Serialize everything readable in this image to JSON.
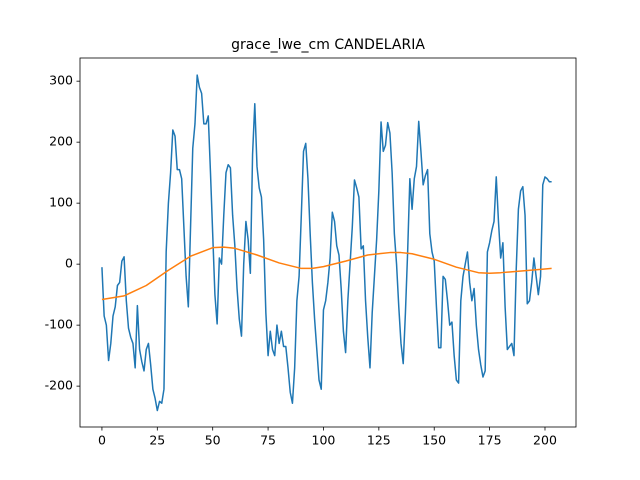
{
  "chart_data": {
    "type": "line",
    "title": "grace_lwe_cm CANDELARIA",
    "xlim": [
      -9.9,
      214
    ],
    "xticks": [
      0,
      25,
      50,
      75,
      100,
      125,
      150,
      175,
      200
    ],
    "ylim": [
      -267,
      338
    ],
    "yticks": [
      -200,
      -100,
      0,
      100,
      200,
      300
    ],
    "grid": false,
    "series": [
      {
        "color": "#1f77b4",
        "x": [
          0,
          1,
          2,
          3,
          4,
          5,
          6,
          7,
          8,
          9,
          10,
          11,
          12,
          13,
          14,
          15,
          16,
          17,
          18,
          19,
          20,
          21,
          22,
          23,
          24,
          25,
          26,
          27,
          28,
          29,
          30,
          31,
          32,
          33,
          34,
          35,
          36,
          37,
          38,
          39,
          40,
          41,
          42,
          43,
          44,
          45,
          46,
          47,
          48,
          49,
          50,
          51,
          52,
          53,
          54,
          55,
          56,
          57,
          58,
          59,
          60,
          61,
          62,
          63,
          64,
          65,
          66,
          67,
          68,
          69,
          70,
          71,
          72,
          73,
          74,
          75,
          76,
          77,
          78,
          79,
          80,
          81,
          82,
          83,
          84,
          85,
          86,
          87,
          88,
          89,
          90,
          91,
          92,
          93,
          94,
          95,
          96,
          97,
          98,
          99,
          100,
          101,
          102,
          103,
          104,
          105,
          106,
          107,
          108,
          109,
          110,
          111,
          112,
          113,
          114,
          115,
          116,
          117,
          118,
          119,
          120,
          121,
          122,
          123,
          124,
          125,
          126,
          127,
          128,
          129,
          130,
          131,
          132,
          133,
          134,
          135,
          136,
          137,
          138,
          139,
          140,
          141,
          142,
          143,
          144,
          145,
          146,
          147,
          148,
          149,
          150,
          151,
          152,
          153,
          154,
          155,
          156,
          157,
          158,
          159,
          160,
          161,
          162,
          163,
          164,
          165,
          166,
          167,
          168,
          169,
          170,
          171,
          172,
          173,
          174,
          175,
          176,
          177,
          178,
          179,
          180,
          181,
          182,
          183,
          184,
          185,
          186,
          187,
          188,
          189,
          190,
          191,
          192,
          193,
          194,
          195,
          196,
          197,
          198,
          199,
          200,
          201,
          202,
          203
        ],
        "values": [
          -5,
          -85,
          -100,
          -158,
          -130,
          -85,
          -70,
          -35,
          -30,
          5,
          12,
          -60,
          -105,
          -120,
          -130,
          -170,
          -68,
          -140,
          -160,
          -175,
          -140,
          -130,
          -165,
          -205,
          -220,
          -240,
          -225,
          -228,
          -205,
          20,
          100,
          150,
          220,
          210,
          155,
          155,
          140,
          60,
          -20,
          -70,
          60,
          190,
          230,
          310,
          290,
          280,
          230,
          230,
          243,
          150,
          50,
          -50,
          -98,
          10,
          0,
          80,
          150,
          163,
          158,
          80,
          30,
          -40,
          -90,
          -118,
          0,
          70,
          40,
          -15,
          180,
          263,
          160,
          125,
          110,
          40,
          -80,
          -150,
          -110,
          -140,
          -150,
          -100,
          -130,
          -110,
          -135,
          -135,
          -170,
          -210,
          -228,
          -170,
          -60,
          -20,
          80,
          185,
          198,
          140,
          50,
          -30,
          -90,
          -140,
          -190,
          -205,
          -75,
          -60,
          -30,
          10,
          85,
          70,
          30,
          15,
          -40,
          -110,
          -145,
          -60,
          0,
          60,
          138,
          125,
          110,
          25,
          30,
          -60,
          -120,
          -170,
          -80,
          -20,
          40,
          120,
          233,
          185,
          195,
          232,
          215,
          150,
          50,
          0,
          -70,
          -130,
          -163,
          -80,
          20,
          140,
          90,
          140,
          160,
          234,
          185,
          130,
          145,
          155,
          50,
          20,
          5,
          -70,
          -137,
          -137,
          -20,
          -25,
          -60,
          -100,
          -95,
          -150,
          -190,
          -195,
          -60,
          -20,
          0,
          20,
          -30,
          -60,
          -40,
          -100,
          -140,
          -165,
          -185,
          -175,
          20,
          35,
          55,
          70,
          143,
          70,
          10,
          35,
          -70,
          -140,
          -135,
          -130,
          -150,
          -10,
          90,
          120,
          127,
          80,
          -65,
          -60,
          -30,
          10,
          -20,
          -50,
          -20,
          130,
          143,
          140,
          135,
          135
        ]
      },
      {
        "color": "#ff7f0e",
        "x": [
          0,
          10,
          20,
          30,
          40,
          50,
          55,
          60,
          70,
          80,
          90,
          95,
          100,
          110,
          120,
          130,
          135,
          140,
          150,
          160,
          170,
          175,
          180,
          190,
          200,
          203
        ],
        "values": [
          -58,
          -52,
          -35,
          -10,
          13,
          27,
          28,
          26,
          15,
          2,
          -7,
          -7,
          -4,
          5,
          15,
          19,
          19,
          17,
          8,
          -5,
          -14,
          -15,
          -14,
          -11,
          -8,
          -7
        ]
      }
    ]
  }
}
